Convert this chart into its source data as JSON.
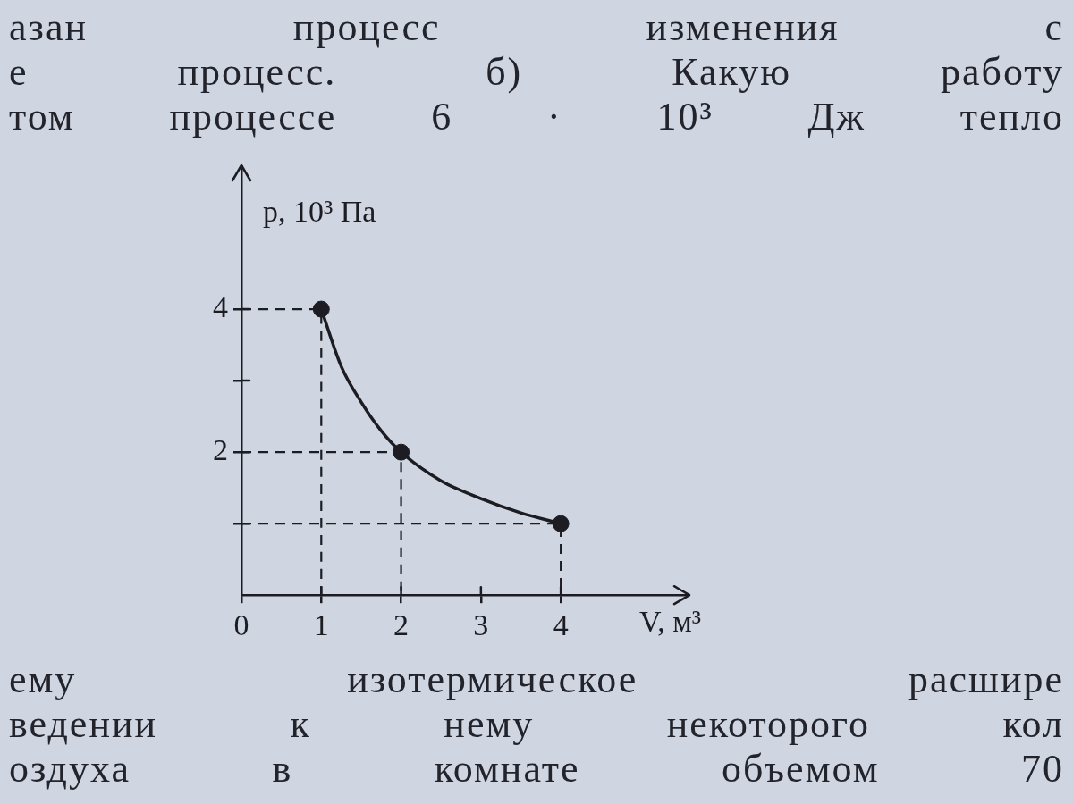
{
  "chart_data": {
    "type": "line",
    "xlabel": "V, м³",
    "ylabel": "p, 10³ Па",
    "xlim": [
      0,
      5.6
    ],
    "ylim": [
      0,
      6
    ],
    "xticks": [
      0,
      1,
      2,
      3,
      4
    ],
    "yticks": [
      {
        "value": 1,
        "label": null
      },
      2,
      {
        "value": 3,
        "label": null
      },
      4
    ],
    "annotations": [
      "азан процесс изменения с",
      "е процесс. б) Какую работу",
      "том процессе 6 · 10³ Дж тепло",
      "ему изотермическое расшире",
      "ведении к нему некоторого кол",
      "оздуха в комнате объемом 70"
    ],
    "series": [
      {
        "color": "#1c1c22",
        "line_style": "dashed",
        "marker": "none",
        "x": [
          0,
          1,
          1
        ],
        "values": [
          4,
          4,
          0
        ]
      },
      {
        "color": "#1c1c22",
        "line_style": "dashed",
        "marker": "none",
        "x": [
          0,
          2,
          2
        ],
        "values": [
          2,
          2,
          0
        ]
      },
      {
        "color": "#1c1c22",
        "line_style": "dashed",
        "marker": "none",
        "x": [
          0,
          4,
          4
        ],
        "values": [
          1,
          1,
          0
        ]
      },
      {
        "color": "#1c1c22",
        "line_style": "solid",
        "marker": "none",
        "x": [
          1,
          1.25,
          1.5,
          1.75,
          2,
          2.5,
          3,
          3.5,
          4
        ],
        "values": [
          4,
          3.2,
          2.7,
          2.3,
          2,
          1.6,
          1.35,
          1.15,
          1
        ]
      },
      {
        "type": "scatter",
        "color": "#1c1c22",
        "marker": "circle",
        "x": [
          1,
          2,
          4
        ],
        "values": [
          4,
          2,
          1
        ]
      }
    ]
  }
}
